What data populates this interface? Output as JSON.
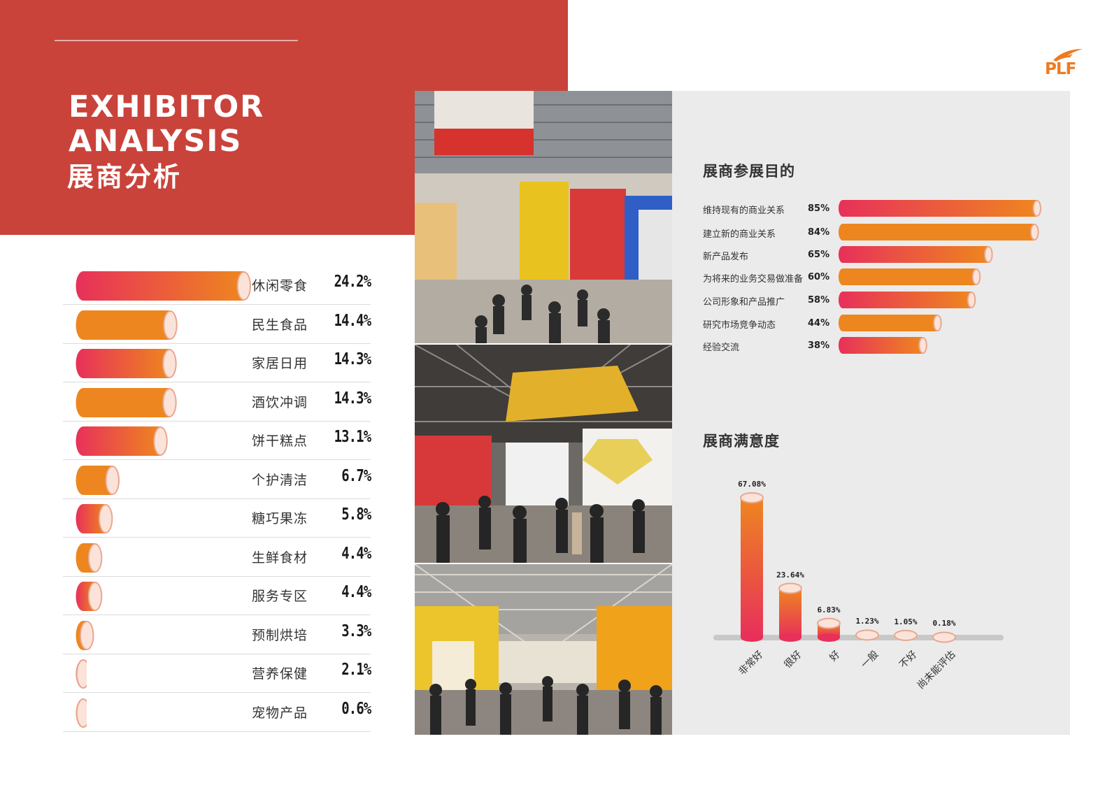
{
  "header": {
    "title_line1": "EXHIBITOR",
    "title_line2": "ANALYSIS",
    "title_cn": "展商分析"
  },
  "logo": {
    "text": "PLF"
  },
  "colors": {
    "brand_red": "#c9433b",
    "bar_orange": "#ee861f",
    "bar_pink": "#e8305a",
    "panel_gray": "#ebebeb"
  },
  "chart_data": [
    {
      "type": "bar",
      "orientation": "horizontal",
      "categories": [
        "休闲零食",
        "民生食品",
        "家居日用",
        "酒饮冲调",
        "饼干糕点",
        "个护清洁",
        "糖巧果冻",
        "生鲜食材",
        "服务专区",
        "预制烘培",
        "营养保健",
        "宠物产品"
      ],
      "values": [
        24.2,
        14.4,
        14.3,
        14.3,
        13.1,
        6.7,
        5.8,
        4.4,
        4.4,
        3.3,
        2.1,
        0.6
      ],
      "labels": [
        "24.2%",
        "14.4%",
        "14.3%",
        "14.3%",
        "13.1%",
        "6.7%",
        "5.8%",
        "4.4%",
        "4.4%",
        "3.3%",
        "2.1%",
        "0.6%"
      ],
      "xlim": [
        0,
        24.2
      ],
      "grid": false,
      "legend": "none"
    },
    {
      "type": "bar",
      "orientation": "horizontal",
      "title": "展商参展目的",
      "categories": [
        "维持现有的商业关系",
        "建立新的商业关系",
        "新产品发布",
        "为将来的业务交易做准备",
        "公司形象和产品推广",
        "研究市场竞争动态",
        "经验交流"
      ],
      "values": [
        85,
        84,
        65,
        60,
        58,
        44,
        38
      ],
      "labels": [
        "85%",
        "84%",
        "65%",
        "60%",
        "58%",
        "44%",
        "38%"
      ],
      "xlim": [
        0,
        85
      ],
      "grid": false,
      "legend": "none"
    },
    {
      "type": "bar",
      "orientation": "vertical",
      "title": "展商满意度",
      "categories": [
        "非常好",
        "很好",
        "好",
        "一般",
        "不好",
        "尚未能评估"
      ],
      "values": [
        67.08,
        23.64,
        6.83,
        1.23,
        1.05,
        0.18
      ],
      "labels": [
        "67.08%",
        "23.64%",
        "6.83%",
        "1.23%",
        "1.05%",
        "0.18%"
      ],
      "ylim": [
        0,
        67.08
      ],
      "grid": false,
      "legend": "none"
    }
  ]
}
